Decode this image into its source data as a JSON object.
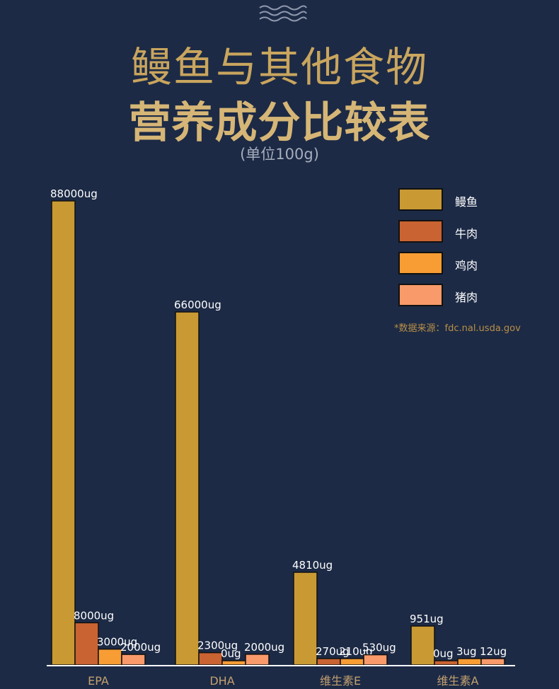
{
  "header": {
    "title_line1": "鳗鱼与其他食物",
    "title_line2": "营养成分比较表",
    "unit_note": "(单位100g)",
    "top_decoration_icon": "wave-icon"
  },
  "source_note": "*数据来源：fdc.nal.usda.gov",
  "colors": {
    "background": "#1c2a45",
    "eel": "#c99a34",
    "beef": "#c96332",
    "chicken": "#f79d34",
    "pork": "#f89a6a",
    "title": "#c9a55e",
    "axis_label": "#c4a070"
  },
  "chart_data": {
    "type": "bar",
    "title": "鳗鱼与其他食物 营养成分比较表",
    "subtitle": "(单位100g)",
    "xlabel": "",
    "ylabel": "",
    "categories": [
      "EPA",
      "DHA",
      "维生素E",
      "维生素A"
    ],
    "series": [
      {
        "name": "鳗鱼",
        "color": "#c99a34",
        "values": [
          88000,
          66000,
          4810,
          951
        ],
        "labels": [
          "88000ug",
          "66000ug",
          "4810ug",
          "951ug"
        ]
      },
      {
        "name": "牛肉",
        "color": "#c96332",
        "values": [
          8000,
          2300,
          270,
          0
        ],
        "labels": [
          "8000ug",
          "2300ug",
          "270ug",
          "0ug"
        ]
      },
      {
        "name": "鸡肉",
        "color": "#f79d34",
        "values": [
          3000,
          0,
          210,
          3
        ],
        "labels": [
          "3000ug",
          "0ug",
          "210ug",
          "3ug"
        ]
      },
      {
        "name": "猪肉",
        "color": "#f89a6a",
        "values": [
          2000,
          2000,
          530,
          12
        ],
        "labels": [
          "2000ug",
          "2000ug",
          "530ug",
          "12ug"
        ]
      }
    ],
    "grid": false,
    "legend_position": "top-right",
    "note": "bar heights are per-category illustrative, not a shared linear axis"
  }
}
